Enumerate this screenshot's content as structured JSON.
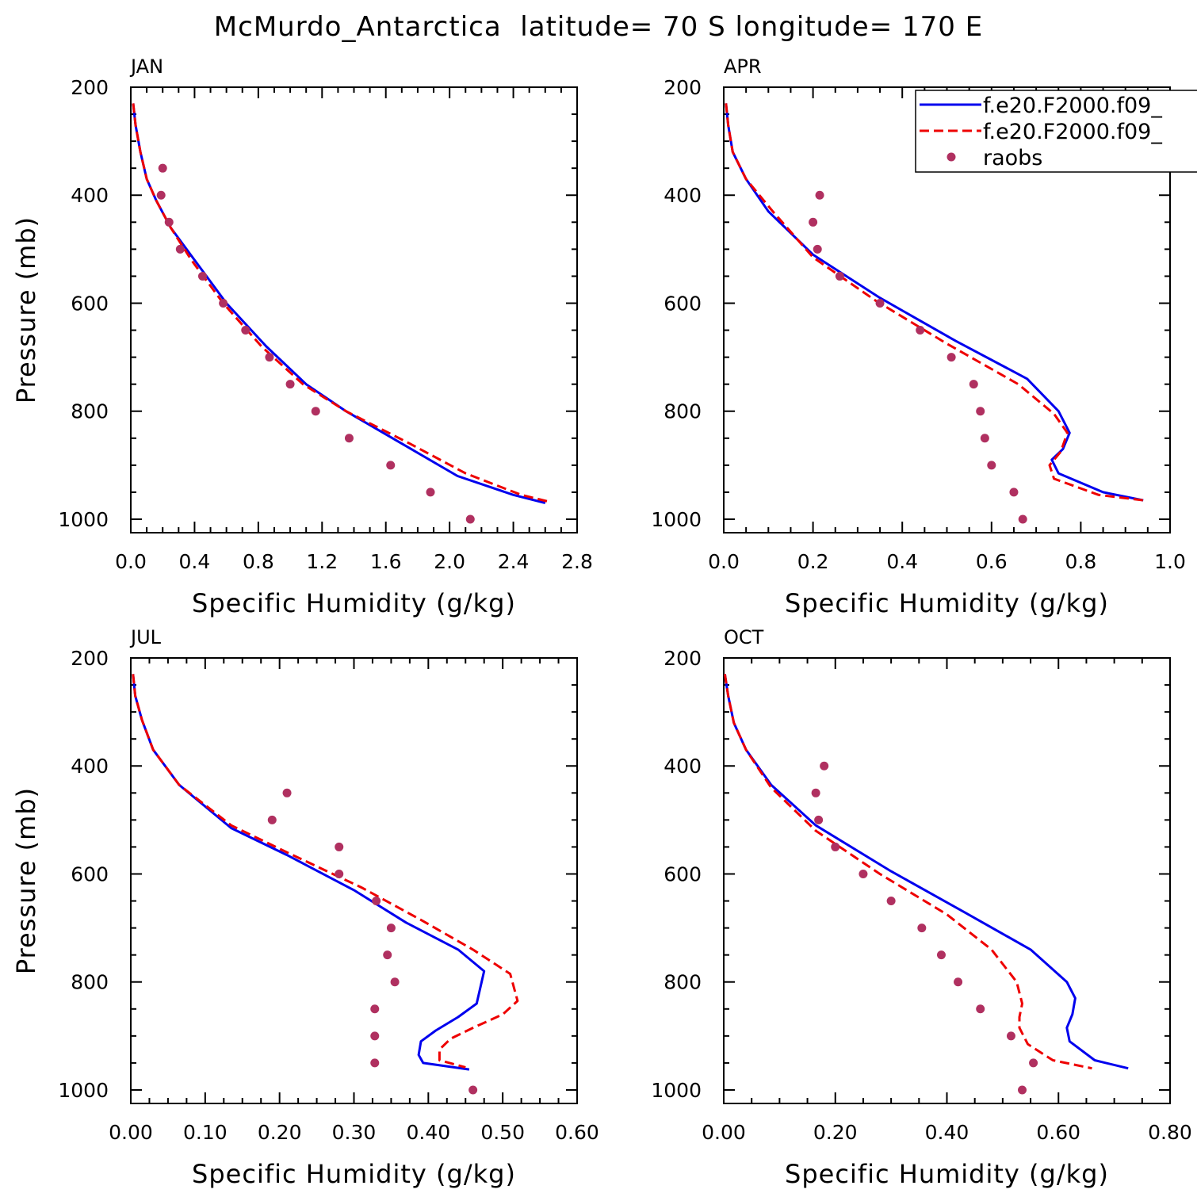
{
  "figure": {
    "title": "McMurdo_Antarctica  latitude= 70 S longitude= 170 E"
  },
  "legend": {
    "entries": [
      {
        "name": "f.e20.F2000.f09_",
        "color": "#0000ee",
        "style": "solid"
      },
      {
        "name": "f.e20.F2000.f09_",
        "color": "#ee0000",
        "style": "dashed"
      },
      {
        "name": "raobs",
        "color": "#b03060",
        "style": "dot"
      }
    ]
  },
  "chart_data": [
    {
      "type": "line",
      "title": "JAN",
      "xlabel": "Specific Humidity (g/kg)",
      "ylabel": "Pressure (mb)",
      "xlim": [
        0,
        2.8
      ],
      "ylim": [
        200,
        1025
      ],
      "y_inverted": true,
      "x_ticks": [
        "0.0",
        "0.4",
        "0.8",
        "1.2",
        "1.6",
        "2.0",
        "2.4",
        "2.8"
      ],
      "y_ticks": [
        "200",
        "400",
        "600",
        "800",
        "1000"
      ],
      "series": [
        {
          "name": "f.e20.F2000.f09_",
          "color": "#0000ee",
          "style": "solid",
          "x": [
            0.015,
            0.03,
            0.06,
            0.1,
            0.16,
            0.25,
            0.4,
            0.6,
            0.85,
            1.1,
            1.35,
            1.7,
            2.05,
            2.4,
            2.6
          ],
          "y": [
            230,
            270,
            320,
            370,
            410,
            460,
            520,
            600,
            680,
            750,
            800,
            860,
            920,
            955,
            970
          ]
        },
        {
          "name": "f.e20.F2000.f09_",
          "color": "#ee0000",
          "style": "dashed",
          "x": [
            0.015,
            0.03,
            0.06,
            0.1,
            0.16,
            0.25,
            0.38,
            0.58,
            0.82,
            1.08,
            1.35,
            1.75,
            2.1,
            2.45,
            2.63
          ],
          "y": [
            230,
            270,
            320,
            370,
            410,
            460,
            520,
            600,
            680,
            750,
            800,
            860,
            915,
            955,
            968
          ]
        },
        {
          "name": "raobs",
          "color": "#b03060",
          "style": "dot",
          "x": [
            0.2,
            0.19,
            0.24,
            0.31,
            0.45,
            0.58,
            0.72,
            0.87,
            1.0,
            1.16,
            1.37,
            1.63,
            1.88,
            2.13
          ],
          "y": [
            350,
            400,
            450,
            500,
            550,
            600,
            650,
            700,
            750,
            800,
            850,
            900,
            950,
            1000
          ]
        }
      ]
    },
    {
      "type": "line",
      "title": "APR",
      "xlabel": "Specific Humidity (g/kg)",
      "ylabel": "",
      "xlim": [
        0,
        1.0
      ],
      "ylim": [
        200,
        1025
      ],
      "y_inverted": true,
      "x_ticks": [
        "0.0",
        "0.2",
        "0.4",
        "0.6",
        "0.8",
        "1.0"
      ],
      "y_ticks": [
        "200",
        "400",
        "600",
        "800",
        "1000"
      ],
      "series": [
        {
          "name": "f.e20.F2000.f09_",
          "color": "#0000ee",
          "style": "solid",
          "x": [
            0.005,
            0.01,
            0.02,
            0.05,
            0.1,
            0.2,
            0.35,
            0.52,
            0.68,
            0.75,
            0.775,
            0.76,
            0.735,
            0.75,
            0.85,
            0.94
          ],
          "y": [
            230,
            270,
            320,
            370,
            430,
            510,
            590,
            670,
            740,
            800,
            840,
            870,
            890,
            915,
            950,
            965
          ]
        },
        {
          "name": "f.e20.F2000.f09_",
          "color": "#ee0000",
          "style": "dashed",
          "x": [
            0.005,
            0.01,
            0.02,
            0.05,
            0.11,
            0.2,
            0.34,
            0.5,
            0.66,
            0.74,
            0.77,
            0.755,
            0.73,
            0.74,
            0.84,
            0.94
          ],
          "y": [
            230,
            270,
            320,
            370,
            430,
            515,
            595,
            675,
            750,
            805,
            840,
            875,
            900,
            925,
            955,
            965
          ]
        },
        {
          "name": "raobs",
          "color": "#b03060",
          "style": "dot",
          "x": [
            0.215,
            0.2,
            0.21,
            0.26,
            0.35,
            0.44,
            0.51,
            0.56,
            0.575,
            0.585,
            0.6,
            0.65,
            0.67
          ],
          "y": [
            400,
            450,
            500,
            550,
            600,
            650,
            700,
            750,
            800,
            850,
            900,
            950,
            1000
          ]
        }
      ]
    },
    {
      "type": "line",
      "title": "JUL",
      "xlabel": "Specific Humidity (g/kg)",
      "ylabel": "Pressure (mb)",
      "xlim": [
        0,
        0.6
      ],
      "ylim": [
        200,
        1025
      ],
      "y_inverted": true,
      "x_ticks": [
        "0.00",
        "0.10",
        "0.20",
        "0.30",
        "0.40",
        "0.50",
        "0.60"
      ],
      "y_ticks": [
        "200",
        "400",
        "600",
        "800",
        "1000"
      ],
      "series": [
        {
          "name": "f.e20.F2000.f09_",
          "color": "#0000ee",
          "style": "solid",
          "x": [
            0.003,
            0.006,
            0.015,
            0.03,
            0.065,
            0.135,
            0.21,
            0.3,
            0.37,
            0.44,
            0.475,
            0.465,
            0.44,
            0.41,
            0.39,
            0.387,
            0.393,
            0.455
          ],
          "y": [
            230,
            270,
            315,
            370,
            435,
            515,
            565,
            630,
            690,
            740,
            780,
            840,
            865,
            890,
            910,
            935,
            950,
            962
          ]
        },
        {
          "name": "f.e20.F2000.f09_",
          "color": "#ee0000",
          "style": "dashed",
          "x": [
            0.003,
            0.006,
            0.015,
            0.03,
            0.065,
            0.135,
            0.21,
            0.31,
            0.39,
            0.46,
            0.51,
            0.52,
            0.5,
            0.46,
            0.43,
            0.415,
            0.415,
            0.45
          ],
          "y": [
            230,
            270,
            315,
            370,
            435,
            510,
            560,
            625,
            685,
            740,
            785,
            835,
            860,
            885,
            905,
            925,
            945,
            958
          ]
        },
        {
          "name": "raobs",
          "color": "#b03060",
          "style": "dot",
          "x": [
            0.21,
            0.19,
            0.28,
            0.28,
            0.33,
            0.35,
            0.345,
            0.355,
            0.328,
            0.328,
            0.328,
            0.46
          ],
          "y": [
            450,
            500,
            550,
            600,
            650,
            700,
            750,
            800,
            850,
            900,
            950,
            1000
          ]
        }
      ]
    },
    {
      "type": "line",
      "title": "OCT",
      "xlabel": "Specific Humidity (g/kg)",
      "ylabel": "",
      "xlim": [
        0,
        0.8
      ],
      "ylim": [
        200,
        1025
      ],
      "y_inverted": true,
      "x_ticks": [
        "0.00",
        "0.20",
        "0.40",
        "0.60",
        "0.80"
      ],
      "y_ticks": [
        "200",
        "400",
        "600",
        "800",
        "1000"
      ],
      "series": [
        {
          "name": "f.e20.F2000.f09_",
          "color": "#0000ee",
          "style": "solid",
          "x": [
            0.002,
            0.008,
            0.018,
            0.04,
            0.085,
            0.165,
            0.3,
            0.43,
            0.55,
            0.615,
            0.63,
            0.625,
            0.615,
            0.62,
            0.665,
            0.725
          ],
          "y": [
            230,
            270,
            320,
            370,
            435,
            510,
            595,
            670,
            740,
            800,
            830,
            860,
            885,
            910,
            945,
            960
          ]
        },
        {
          "name": "f.e20.F2000.f09_",
          "color": "#ee0000",
          "style": "dashed",
          "x": [
            0.002,
            0.008,
            0.018,
            0.04,
            0.085,
            0.165,
            0.28,
            0.4,
            0.48,
            0.525,
            0.535,
            0.53,
            0.53,
            0.545,
            0.59,
            0.66
          ],
          "y": [
            230,
            270,
            320,
            370,
            440,
            520,
            600,
            675,
            740,
            800,
            840,
            865,
            885,
            915,
            945,
            960
          ]
        },
        {
          "name": "raobs",
          "color": "#b03060",
          "style": "dot",
          "x": [
            0.18,
            0.165,
            0.17,
            0.2,
            0.25,
            0.3,
            0.355,
            0.39,
            0.42,
            0.46,
            0.515,
            0.555,
            0.535
          ],
          "y": [
            400,
            450,
            500,
            550,
            600,
            650,
            700,
            750,
            800,
            850,
            900,
            950,
            1000
          ]
        }
      ]
    }
  ]
}
